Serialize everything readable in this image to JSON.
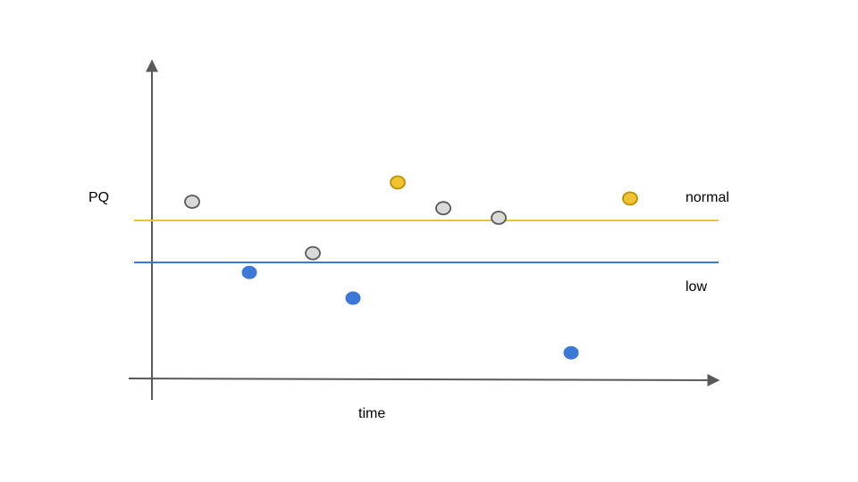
{
  "chart_data": {
    "type": "scatter",
    "ylabel": "PQ",
    "xlabel": "time",
    "thresholds": [
      {
        "name": "normal",
        "label": "normal",
        "color": "#f1c232"
      },
      {
        "name": "low",
        "label": "low",
        "color": "#3c78d8"
      }
    ],
    "categories": {
      "gray": {
        "fill": "#d9d9d9",
        "stroke": "#595959"
      },
      "yellow": {
        "fill": "#f1c232",
        "stroke": "#bf9000"
      },
      "blue": {
        "fill": "#3c78d8",
        "stroke": "#3c78d8"
      }
    },
    "points": [
      {
        "t": 1,
        "pq": 0.55,
        "cat": "gray"
      },
      {
        "t": 2,
        "pq": 0.33,
        "cat": "blue"
      },
      {
        "t": 3,
        "pq": 0.39,
        "cat": "gray"
      },
      {
        "t": 4,
        "pq": 0.25,
        "cat": "blue"
      },
      {
        "t": 5,
        "pq": 0.61,
        "cat": "yellow"
      },
      {
        "t": 6,
        "pq": 0.53,
        "cat": "gray"
      },
      {
        "t": 7,
        "pq": 0.5,
        "cat": "gray"
      },
      {
        "t": 8,
        "pq": 0.08,
        "cat": "blue"
      },
      {
        "t": 9,
        "pq": 0.56,
        "cat": "yellow"
      }
    ]
  }
}
